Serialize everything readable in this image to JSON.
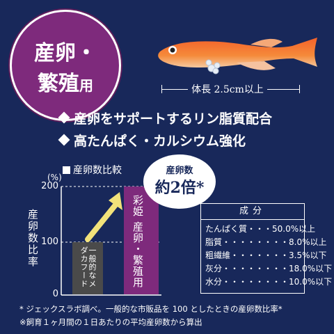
{
  "badge": {
    "line1": "産卵・",
    "line2": "繁殖",
    "line2_small": "用"
  },
  "size_label": "体長 2.5cm以上",
  "bullets": [
    "産卵をサポートするリン脂質配合",
    "高たんぱく・カルシウム強化"
  ],
  "chart": {
    "title": "産卵数比較",
    "ylabel": "産卵数比率",
    "unit": "(%)",
    "ticks": [
      "200",
      "100",
      "0"
    ],
    "bar1_label": "一般的なメダカフード",
    "bar2_label": "彩姫 産卵・繁殖用",
    "bubble_l1": "産卵数",
    "bubble_l2": "約2倍*"
  },
  "chart_data": {
    "type": "bar",
    "categories": [
      "一般的なメダカフード",
      "彩姫 産卵・繁殖用"
    ],
    "values": [
      100,
      200
    ],
    "title": "産卵数比較",
    "ylabel": "産卵数比率",
    "ylim": [
      0,
      200
    ]
  },
  "table": {
    "header": "成分",
    "rows": [
      {
        "name": "たんぱく質",
        "dots": "・・・",
        "value": "50.0%以上"
      },
      {
        "name": "脂質",
        "dots": "・・・・・・・・",
        "value": "8.0%以上"
      },
      {
        "name": "粗繊維",
        "dots": "・・・・・・・",
        "value": "3.5%以下"
      },
      {
        "name": "灰分",
        "dots": "・・・・・・・・",
        "value": "18.0%以下"
      },
      {
        "name": "水分",
        "dots": "・・・・・・・・",
        "value": "10.0%以下"
      }
    ]
  },
  "notes": [
    "* ジェックスラボ調べ。一般的な市販品を 100 としたときの産卵数比率*",
    "※飼育１ヶ月間の１日あたりの平均産卵数から算出"
  ],
  "colors": {
    "background": "#18285a",
    "purple": "#7e2a7c",
    "arrow": "#f2e27a",
    "gray_bar": "#4a4a4a"
  }
}
